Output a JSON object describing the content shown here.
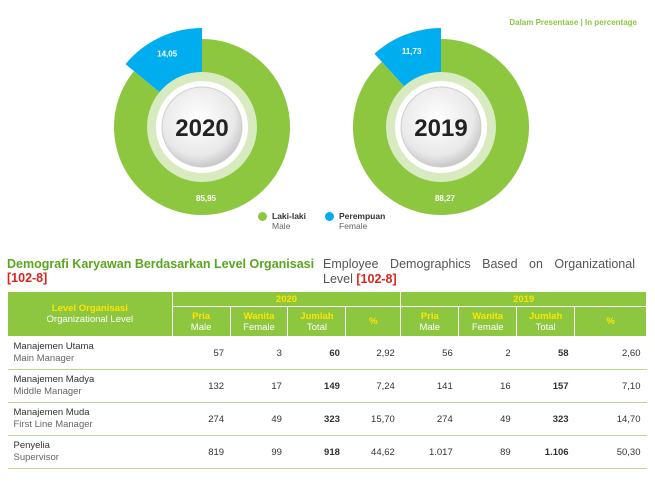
{
  "unit_note": "Dalam Presentase | In percentage",
  "chart_data": [
    {
      "type": "pie",
      "title": "2020",
      "slices": [
        {
          "name": "Laki-laki",
          "value": 85.95,
          "label": "85,95",
          "color": "#8dc63f"
        },
        {
          "name": "Perempuan",
          "value": 14.05,
          "label": "14,05",
          "color": "#00aeef"
        }
      ]
    },
    {
      "type": "pie",
      "title": "2019",
      "slices": [
        {
          "name": "Laki-laki",
          "value": 88.27,
          "label": "88,27",
          "color": "#8dc63f"
        },
        {
          "name": "Perempuan",
          "value": 11.73,
          "label": "11,73",
          "color": "#00aeef"
        }
      ]
    }
  ],
  "legend": [
    {
      "id": "Laki-laki",
      "en": "Male",
      "color": "#8dc63f"
    },
    {
      "id": "Perempuan",
      "en": "Female",
      "color": "#00aeef"
    }
  ],
  "section": {
    "title_id": "Demografi Karyawan Berdasarkan Level Organisasi",
    "title_en": "Employee Demographics Based on Organizational Level",
    "ref": "[102-8]"
  },
  "table": {
    "level_header_id": "Level Organisasi",
    "level_header_en": "Organizational Level",
    "years": [
      "2020",
      "2019"
    ],
    "columns": [
      {
        "id": "Pria",
        "en": "Male"
      },
      {
        "id": "Wanita",
        "en": "Female"
      },
      {
        "id": "Jumlah",
        "en": "Total"
      },
      {
        "id": "%",
        "en": ""
      }
    ],
    "rows": [
      {
        "id": "Manajemen Utama",
        "en": "Main Manager",
        "y2020": [
          "57",
          "3",
          "60",
          "2,92"
        ],
        "y2019": [
          "56",
          "2",
          "58",
          "2,60"
        ]
      },
      {
        "id": "Manajemen Madya",
        "en": "Middle Manager",
        "y2020": [
          "132",
          "17",
          "149",
          "7,24"
        ],
        "y2019": [
          "141",
          "16",
          "157",
          "7,10"
        ]
      },
      {
        "id": "Manajemen Muda",
        "en": "First Line Manager",
        "y2020": [
          "274",
          "49",
          "323",
          "15,70"
        ],
        "y2019": [
          "274",
          "49",
          "323",
          "14,70"
        ]
      },
      {
        "id": "Penyelia",
        "en": "Supervisor",
        "y2020": [
          "819",
          "99",
          "918",
          "44,62"
        ],
        "y2019": [
          "1.017",
          "89",
          "1.106",
          "50,30"
        ]
      }
    ]
  }
}
